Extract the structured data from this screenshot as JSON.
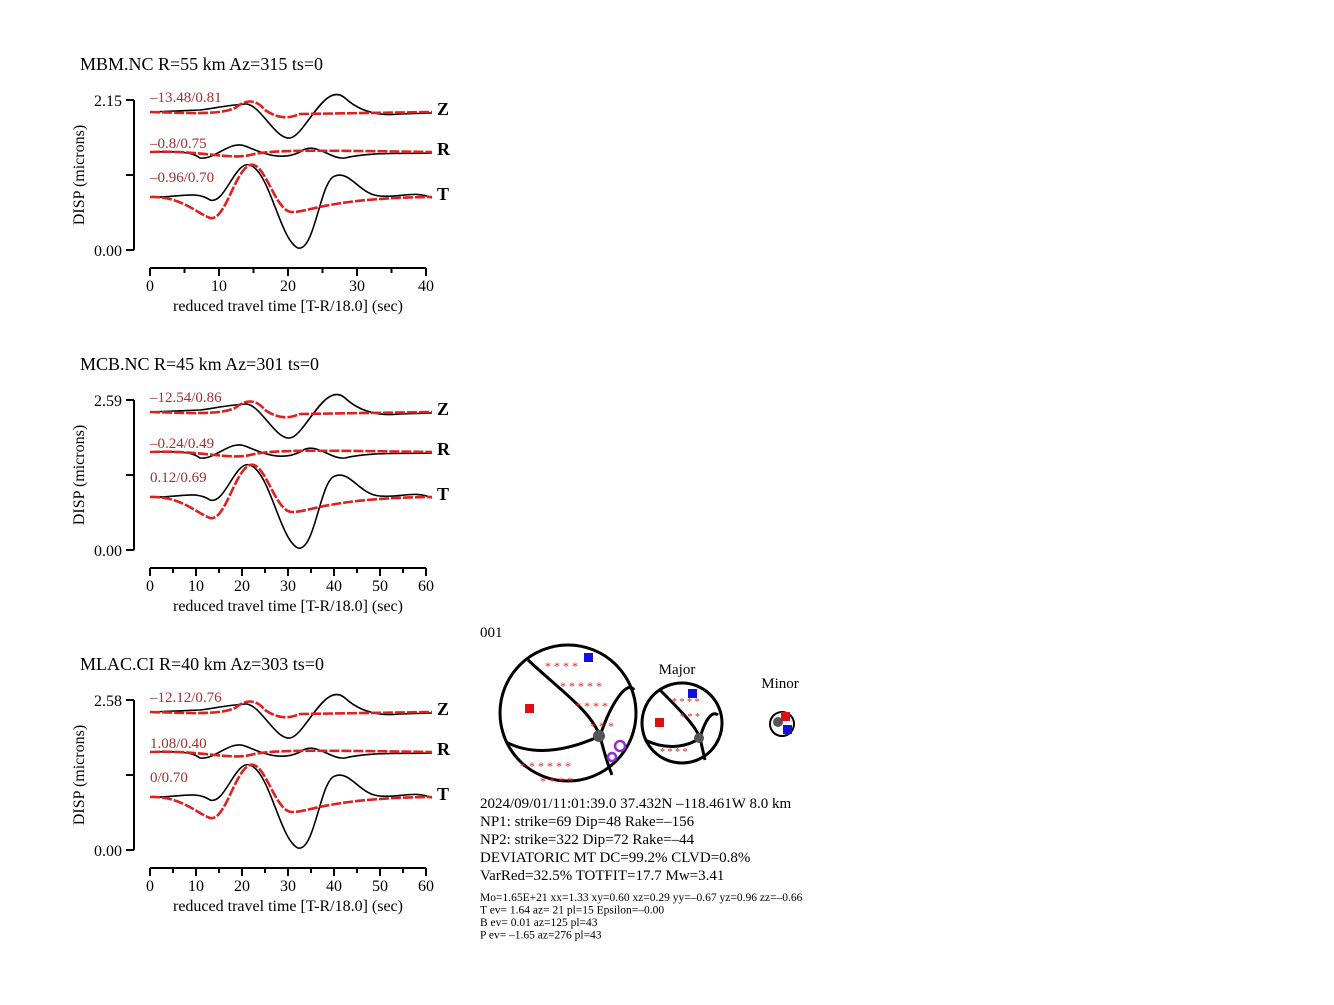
{
  "panels": [
    {
      "title": "MBM.NC R=55 km Az=315 ts=0",
      "ylabel": "DISP (microns)",
      "xlabel": "reduced travel time [T-R/18.0] (sec)",
      "ylim": [
        0,
        2.15
      ],
      "yticks": [
        {
          "value": 0,
          "label": "0.00"
        },
        2.15
      ],
      "xlim": [
        0,
        40
      ],
      "xticks": [
        0,
        10,
        20,
        30,
        40
      ],
      "traces": [
        {
          "component": "Z",
          "annotation": "–13.48/0.81"
        },
        {
          "component": "R",
          "annotation": "–0.8/0.75"
        },
        {
          "component": "T",
          "annotation": "–0.96/0.70"
        }
      ]
    },
    {
      "title": "MCB.NC R=45 km Az=301 ts=0",
      "ylabel": "DISP (microns)",
      "xlabel": "reduced travel time [T-R/18.0] (sec)",
      "ylim": [
        0,
        2.59
      ],
      "yticks": [
        {
          "value": 0,
          "label": "0.00"
        },
        2.59
      ],
      "xlim": [
        0,
        60
      ],
      "xticks": [
        0,
        10,
        20,
        30,
        40,
        50,
        60
      ],
      "traces": [
        {
          "component": "Z",
          "annotation": "–12.54/0.86"
        },
        {
          "component": "R",
          "annotation": "–0.24/0.49"
        },
        {
          "component": "T",
          "annotation": "0.12/0.69"
        }
      ]
    },
    {
      "title": "MLAC.CI R=40 km Az=303 ts=0",
      "ylabel": "DISP (microns)",
      "xlabel": "reduced travel time [T-R/18.0] (sec)",
      "ylim": [
        0,
        2.58
      ],
      "yticks": [
        {
          "value": 0,
          "label": "0.00"
        },
        2.58
      ],
      "xlim": [
        0,
        60
      ],
      "xticks": [
        0,
        10,
        20,
        30,
        40,
        50,
        60
      ],
      "traces": [
        {
          "component": "Z",
          "annotation": "–12.12/0.76"
        },
        {
          "component": "R",
          "annotation": "1.08/0.40"
        },
        {
          "component": "T",
          "annotation": "0/0.70"
        }
      ]
    }
  ],
  "mechanism": {
    "id": "001",
    "major": "Major",
    "minor": "Minor",
    "lines": [
      "2024/09/01/11:01:39.0 37.432N –118.461W 8.0 km",
      "NP1: strike=69 Dip=48 Rake=–156",
      "NP2: strike=322 Dip=72 Rake=–44",
      "DEVIATORIC MT DC=99.2% CLVD=0.8%",
      "VarRed=32.5% TOTFIT=17.7 Mw=3.41"
    ],
    "small_lines": [
      "Mo=1.65E+21 xx=1.33 xy=0.60 xz=0.29 yy=–0.67 yz=0.96 zz=–0.66",
      "T ev=  1.64 az= 21 pl=15 Epsilon=–0.00",
      "B ev=  0.01 az=125 pl=43",
      "P ev= –1.65 az=276 pl=43"
    ]
  }
}
